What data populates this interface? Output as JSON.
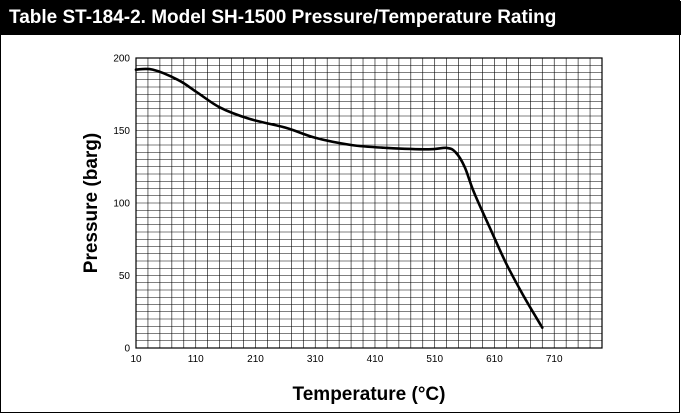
{
  "chart_data": {
    "type": "line",
    "title": "Table ST-184-2. Model SH-1500 Pressure/Temperature Rating",
    "xlabel": "Temperature (°C)",
    "ylabel": "Pressure (barg)",
    "xlim": [
      10,
      790
    ],
    "ylim": [
      0,
      200
    ],
    "x_ticks": [
      10,
      110,
      210,
      310,
      410,
      510,
      610,
      710
    ],
    "y_ticks": [
      0,
      50,
      100,
      150,
      200
    ],
    "grid": true,
    "series": [
      {
        "color": "#000000",
        "x": [
          10,
          38,
          80,
          110,
          150,
          200,
          260,
          310,
          370,
          430,
          500,
          530,
          545,
          560,
          575,
          600,
          630,
          660,
          690
        ],
        "y": [
          192,
          192,
          185,
          177,
          166,
          158,
          152,
          145,
          140,
          138,
          137,
          138,
          135,
          125,
          108,
          85,
          58,
          35,
          14
        ]
      }
    ]
  }
}
